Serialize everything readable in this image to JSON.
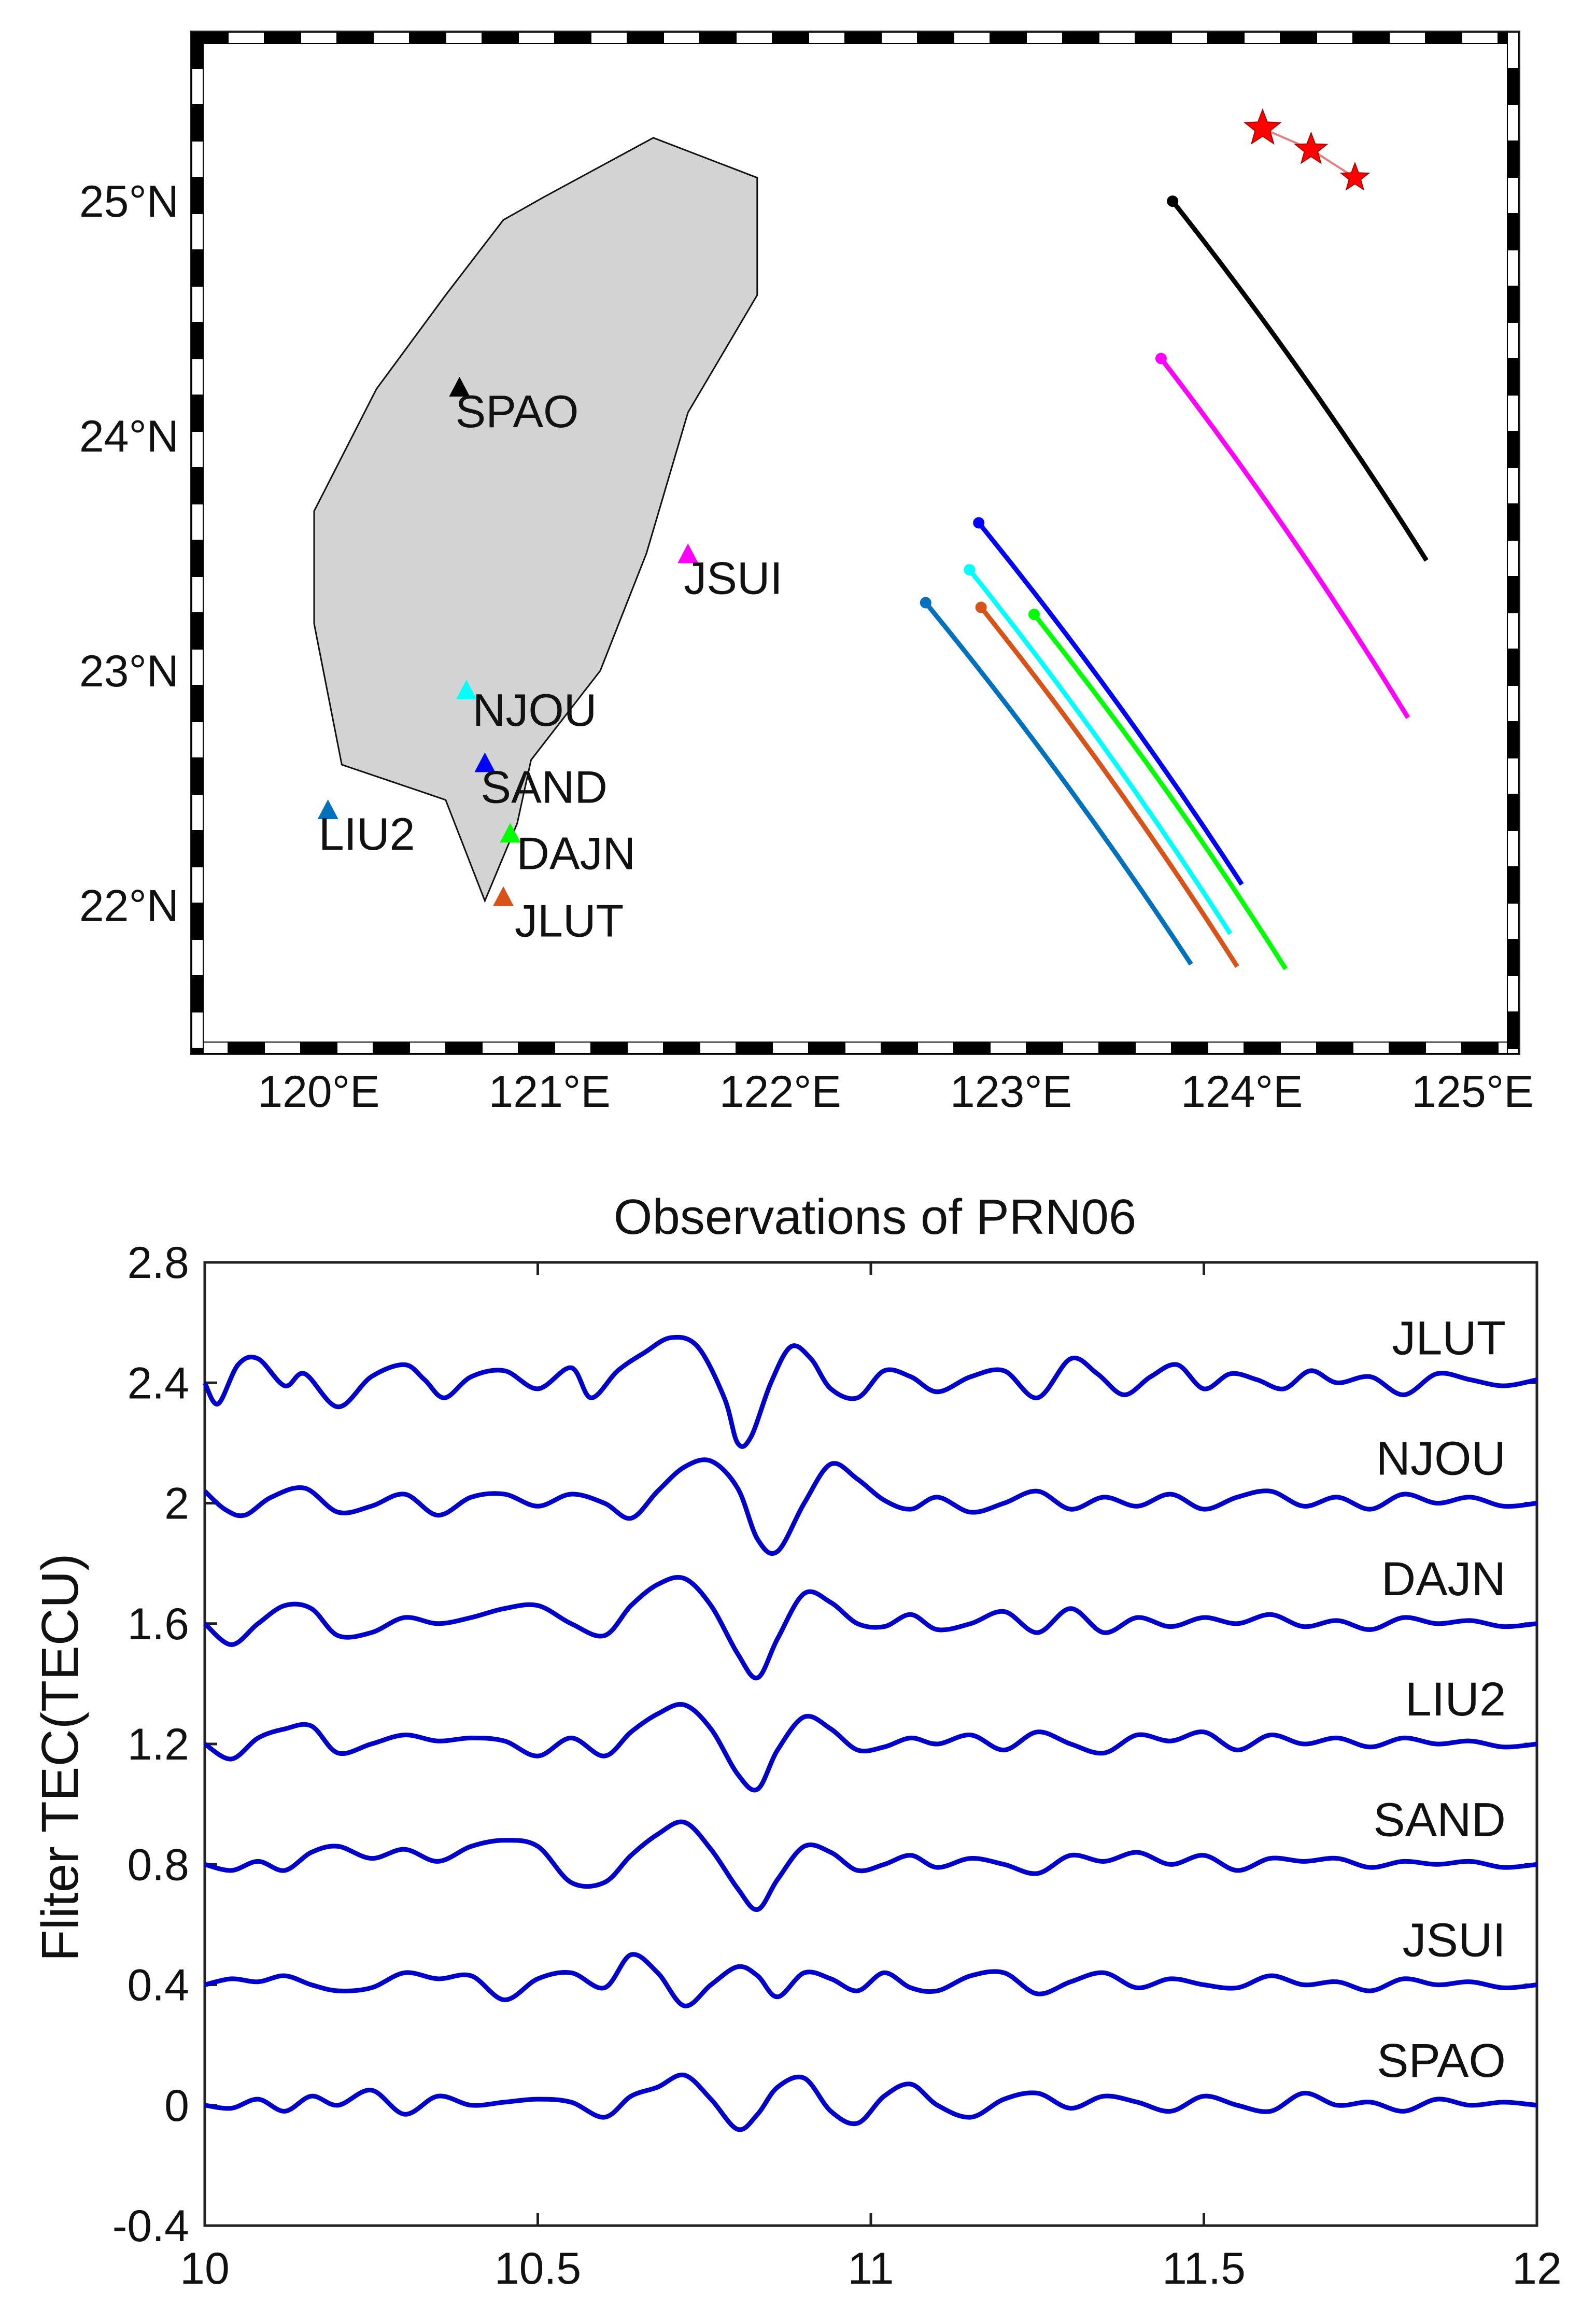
{
  "chart_data": [
    {
      "type": "map",
      "title": "",
      "x_ticks": [
        "120°E",
        "121°E",
        "122°E",
        "123°E",
        "124°E",
        "125°E"
      ],
      "y_ticks": [
        "22°N",
        "23°N",
        "24°N",
        "25°N"
      ],
      "xlim": [
        119.45,
        125.2
      ],
      "ylim": [
        21.37,
        25.72
      ],
      "coastline": [
        [
          120.72,
          22.02
        ],
        [
          120.55,
          22.45
        ],
        [
          120.1,
          22.6
        ],
        [
          119.98,
          23.2
        ],
        [
          119.98,
          23.68
        ],
        [
          120.25,
          24.2
        ],
        [
          120.55,
          24.6
        ],
        [
          120.8,
          24.92
        ],
        [
          120.98,
          25.02
        ],
        [
          121.45,
          25.27
        ],
        [
          121.9,
          25.1
        ],
        [
          121.9,
          24.6
        ],
        [
          121.6,
          24.1
        ],
        [
          121.42,
          23.5
        ],
        [
          121.22,
          23.0
        ],
        [
          120.92,
          22.62
        ],
        [
          120.86,
          22.35
        ],
        [
          120.72,
          22.02
        ]
      ],
      "stations": [
        {
          "name": "SPAO",
          "lon": 120.61,
          "lat": 24.21,
          "color": "#000000"
        },
        {
          "name": "JSUI",
          "lon": 121.6,
          "lat": 23.5,
          "color": "#ff00ff"
        },
        {
          "name": "NJOU",
          "lon": 120.64,
          "lat": 22.92,
          "color": "#00ffff"
        },
        {
          "name": "SAND",
          "lon": 120.72,
          "lat": 22.61,
          "color": "#0000ff"
        },
        {
          "name": "LIU2",
          "lon": 120.04,
          "lat": 22.41,
          "color": "#0072bd"
        },
        {
          "name": "DAJN",
          "lon": 120.83,
          "lat": 22.31,
          "color": "#00ff00"
        },
        {
          "name": "JLUT",
          "lon": 120.8,
          "lat": 22.04,
          "color": "#d95319"
        }
      ],
      "epicenters": [
        {
          "lon": 124.09,
          "lat": 25.31
        },
        {
          "lon": 124.3,
          "lat": 25.22
        },
        {
          "lon": 124.49,
          "lat": 25.1
        }
      ],
      "ipp_tracks": [
        {
          "station": "SPAO",
          "color": "#000000",
          "start": [
            123.7,
            25.0
          ],
          "end": [
            124.8,
            23.47
          ]
        },
        {
          "station": "JSUI",
          "color": "#ff00ff",
          "start": [
            123.65,
            24.33
          ],
          "end": [
            124.72,
            22.8
          ]
        },
        {
          "station": "SAND",
          "color": "#0000ff",
          "start": [
            122.86,
            23.63
          ],
          "end": [
            124.0,
            22.09
          ]
        },
        {
          "station": "DAJN",
          "color": "#00ff00",
          "start": [
            123.1,
            23.24
          ],
          "end": [
            124.19,
            21.73
          ]
        },
        {
          "station": "NJOU",
          "color": "#00ffff",
          "start": [
            122.82,
            23.43
          ],
          "end": [
            123.95,
            21.88
          ]
        },
        {
          "station": "JLUT",
          "color": "#d95319",
          "start": [
            122.87,
            23.27
          ],
          "end": [
            123.98,
            21.74
          ]
        },
        {
          "station": "LIU2",
          "color": "#0072bd",
          "start": [
            122.63,
            23.29
          ],
          "end": [
            123.78,
            21.75
          ]
        }
      ]
    },
    {
      "type": "line",
      "title": "Observations of PRN06",
      "xlabel": "",
      "ylabel": "Fliter TEC(TECU)",
      "xlim": [
        10,
        12
      ],
      "ylim": [
        -0.4,
        2.8
      ],
      "x_ticks": [
        "10",
        "10.5",
        "11",
        "11.5",
        "12"
      ],
      "y_ticks": [
        "-0.4",
        "0",
        "0.4",
        "0.8",
        "1.2",
        "1.6",
        "2",
        "2.4",
        "2.8"
      ],
      "line_color": "#0000cc",
      "series": [
        {
          "name": "JLUT",
          "offset": 2.4,
          "x": [
            10.0,
            10.02,
            10.05,
            10.08,
            10.12,
            10.15,
            10.2,
            10.25,
            10.3,
            10.33,
            10.36,
            10.4,
            10.45,
            10.5,
            10.55,
            10.58,
            10.62,
            10.66,
            10.7,
            10.74,
            10.78,
            10.8,
            10.82,
            10.85,
            10.88,
            10.91,
            10.94,
            10.98,
            11.02,
            11.06,
            11.1,
            11.15,
            11.2,
            11.25,
            11.3,
            11.34,
            11.38,
            11.42,
            11.46,
            11.5,
            11.54,
            11.58,
            11.62,
            11.66,
            11.7,
            11.75,
            11.8,
            11.85,
            11.9,
            11.95,
            12.0
          ],
          "y": [
            0.0,
            -0.07,
            0.06,
            0.08,
            -0.01,
            0.03,
            -0.08,
            0.02,
            0.06,
            0.01,
            -0.05,
            0.02,
            0.04,
            -0.02,
            0.05,
            -0.05,
            0.04,
            0.1,
            0.15,
            0.12,
            -0.05,
            -0.2,
            -0.18,
            0.0,
            0.12,
            0.08,
            -0.02,
            -0.05,
            0.04,
            0.02,
            -0.03,
            0.02,
            0.04,
            -0.05,
            0.08,
            0.03,
            -0.04,
            0.02,
            0.06,
            -0.02,
            0.03,
            0.01,
            -0.02,
            0.04,
            0.0,
            0.02,
            -0.04,
            0.03,
            0.01,
            -0.01,
            0.01
          ]
        },
        {
          "name": "NJOU",
          "offset": 2.0,
          "x": [
            10.0,
            10.03,
            10.06,
            10.1,
            10.15,
            10.2,
            10.25,
            10.3,
            10.35,
            10.4,
            10.45,
            10.5,
            10.55,
            10.6,
            10.64,
            10.68,
            10.72,
            10.76,
            10.8,
            10.83,
            10.86,
            10.9,
            10.94,
            10.98,
            11.02,
            11.06,
            11.1,
            11.15,
            11.2,
            11.25,
            11.3,
            11.35,
            11.4,
            11.45,
            11.5,
            11.55,
            11.6,
            11.65,
            11.7,
            11.75,
            11.8,
            11.85,
            11.9,
            11.95,
            12.0
          ],
          "y": [
            0.04,
            -0.02,
            -0.04,
            0.02,
            0.05,
            -0.03,
            -0.01,
            0.03,
            -0.04,
            0.02,
            0.03,
            -0.01,
            0.03,
            0.0,
            -0.05,
            0.04,
            0.12,
            0.14,
            0.05,
            -0.12,
            -0.16,
            0.0,
            0.13,
            0.08,
            0.01,
            -0.02,
            0.02,
            -0.03,
            0.0,
            0.04,
            -0.02,
            0.02,
            -0.01,
            0.03,
            -0.02,
            0.02,
            0.04,
            -0.01,
            0.02,
            -0.02,
            0.03,
            0.0,
            0.02,
            -0.01,
            0.0
          ]
        },
        {
          "name": "DAJN",
          "offset": 1.6,
          "x": [
            10.0,
            10.04,
            10.08,
            10.12,
            10.16,
            10.2,
            10.25,
            10.3,
            10.35,
            10.4,
            10.45,
            10.5,
            10.55,
            10.6,
            10.64,
            10.68,
            10.72,
            10.76,
            10.8,
            10.83,
            10.86,
            10.9,
            10.94,
            10.98,
            11.02,
            11.06,
            11.1,
            11.15,
            11.2,
            11.25,
            11.3,
            11.35,
            11.4,
            11.45,
            11.5,
            11.55,
            11.6,
            11.65,
            11.7,
            11.75,
            11.8,
            11.85,
            11.9,
            11.95,
            12.0
          ],
          "y": [
            0.0,
            -0.07,
            0.0,
            0.06,
            0.05,
            -0.04,
            -0.03,
            0.02,
            0.0,
            0.02,
            0.05,
            0.06,
            0.0,
            -0.04,
            0.06,
            0.13,
            0.15,
            0.06,
            -0.1,
            -0.18,
            -0.05,
            0.1,
            0.07,
            0.0,
            -0.01,
            0.03,
            -0.02,
            0.0,
            0.04,
            -0.03,
            0.05,
            -0.03,
            0.02,
            -0.01,
            0.02,
            0.0,
            0.03,
            -0.01,
            0.01,
            -0.02,
            0.02,
            0.0,
            0.01,
            -0.01,
            0.0
          ]
        },
        {
          "name": "LIU2",
          "offset": 1.2,
          "x": [
            10.0,
            10.04,
            10.08,
            10.12,
            10.16,
            10.2,
            10.25,
            10.3,
            10.35,
            10.4,
            10.45,
            10.5,
            10.55,
            10.6,
            10.64,
            10.68,
            10.72,
            10.76,
            10.8,
            10.83,
            10.86,
            10.9,
            10.94,
            10.98,
            11.02,
            11.06,
            11.1,
            11.15,
            11.2,
            11.25,
            11.3,
            11.35,
            11.4,
            11.45,
            11.5,
            11.55,
            11.6,
            11.65,
            11.7,
            11.75,
            11.8,
            11.85,
            11.9,
            11.95,
            12.0
          ],
          "y": [
            0.0,
            -0.05,
            0.02,
            0.05,
            0.06,
            -0.03,
            0.0,
            0.03,
            0.01,
            0.02,
            0.01,
            -0.04,
            0.02,
            -0.04,
            0.04,
            0.1,
            0.13,
            0.05,
            -0.1,
            -0.15,
            -0.02,
            0.09,
            0.05,
            -0.02,
            -0.01,
            0.02,
            0.0,
            0.03,
            -0.02,
            0.04,
            0.0,
            -0.03,
            0.03,
            0.01,
            0.04,
            -0.02,
            0.03,
            0.0,
            0.02,
            -0.01,
            0.02,
            0.0,
            0.01,
            -0.01,
            0.0
          ]
        },
        {
          "name": "SAND",
          "offset": 0.8,
          "x": [
            10.0,
            10.04,
            10.08,
            10.12,
            10.16,
            10.2,
            10.25,
            10.3,
            10.35,
            10.4,
            10.45,
            10.5,
            10.55,
            10.6,
            10.64,
            10.68,
            10.72,
            10.76,
            10.8,
            10.83,
            10.86,
            10.9,
            10.94,
            10.98,
            11.02,
            11.06,
            11.1,
            11.15,
            11.2,
            11.25,
            11.3,
            11.35,
            11.4,
            11.45,
            11.5,
            11.55,
            11.6,
            11.65,
            11.7,
            11.75,
            11.8,
            11.85,
            11.9,
            11.95,
            12.0
          ],
          "y": [
            0.0,
            -0.02,
            0.01,
            -0.02,
            0.04,
            0.06,
            0.02,
            0.05,
            0.01,
            0.06,
            0.08,
            0.06,
            -0.06,
            -0.06,
            0.03,
            0.1,
            0.14,
            0.05,
            -0.08,
            -0.15,
            -0.05,
            0.06,
            0.04,
            -0.02,
            0.0,
            0.03,
            -0.01,
            0.02,
            0.0,
            -0.03,
            0.03,
            0.01,
            0.04,
            0.0,
            0.03,
            -0.02,
            0.02,
            0.01,
            0.02,
            -0.01,
            0.01,
            0.0,
            0.01,
            -0.01,
            0.0
          ]
        },
        {
          "name": "JSUI",
          "offset": 0.4,
          "x": [
            10.0,
            10.04,
            10.08,
            10.12,
            10.16,
            10.2,
            10.25,
            10.3,
            10.35,
            10.4,
            10.45,
            10.5,
            10.55,
            10.6,
            10.64,
            10.68,
            10.72,
            10.76,
            10.8,
            10.83,
            10.86,
            10.9,
            10.94,
            10.98,
            11.02,
            11.06,
            11.1,
            11.15,
            11.2,
            11.25,
            11.3,
            11.35,
            11.4,
            11.45,
            11.5,
            11.55,
            11.6,
            11.65,
            11.7,
            11.75,
            11.8,
            11.85,
            11.9,
            11.95,
            12.0
          ],
          "y": [
            0.0,
            0.02,
            0.01,
            0.03,
            0.0,
            -0.02,
            -0.01,
            0.04,
            0.02,
            0.03,
            -0.05,
            0.02,
            0.04,
            -0.01,
            0.1,
            0.04,
            -0.07,
            0.0,
            0.06,
            0.03,
            -0.04,
            0.04,
            0.02,
            -0.02,
            0.04,
            -0.01,
            -0.02,
            0.03,
            0.04,
            -0.03,
            0.01,
            0.04,
            -0.01,
            0.02,
            0.0,
            -0.01,
            0.03,
            0.0,
            0.01,
            -0.02,
            0.02,
            0.0,
            0.01,
            -0.01,
            0.0
          ]
        },
        {
          "name": "SPAO",
          "offset": 0.0,
          "x": [
            10.0,
            10.04,
            10.08,
            10.12,
            10.16,
            10.2,
            10.25,
            10.3,
            10.35,
            10.4,
            10.45,
            10.5,
            10.55,
            10.6,
            10.64,
            10.68,
            10.72,
            10.76,
            10.8,
            10.83,
            10.86,
            10.9,
            10.94,
            10.98,
            11.02,
            11.06,
            11.1,
            11.15,
            11.2,
            11.25,
            11.3,
            11.35,
            11.4,
            11.45,
            11.5,
            11.55,
            11.6,
            11.65,
            11.7,
            11.75,
            11.8,
            11.85,
            11.9,
            11.95,
            12.0
          ],
          "y": [
            0.0,
            -0.01,
            0.02,
            -0.02,
            0.03,
            0.0,
            0.05,
            -0.03,
            0.03,
            0.0,
            0.01,
            0.02,
            0.01,
            -0.04,
            0.03,
            0.06,
            0.1,
            0.02,
            -0.08,
            -0.03,
            0.06,
            0.09,
            -0.02,
            -0.06,
            0.03,
            0.07,
            0.0,
            -0.04,
            0.02,
            0.04,
            -0.01,
            0.03,
            0.01,
            -0.02,
            0.03,
            0.0,
            -0.02,
            0.04,
            0.0,
            0.01,
            -0.02,
            0.02,
            0.0,
            0.01,
            0.0
          ]
        }
      ]
    }
  ]
}
